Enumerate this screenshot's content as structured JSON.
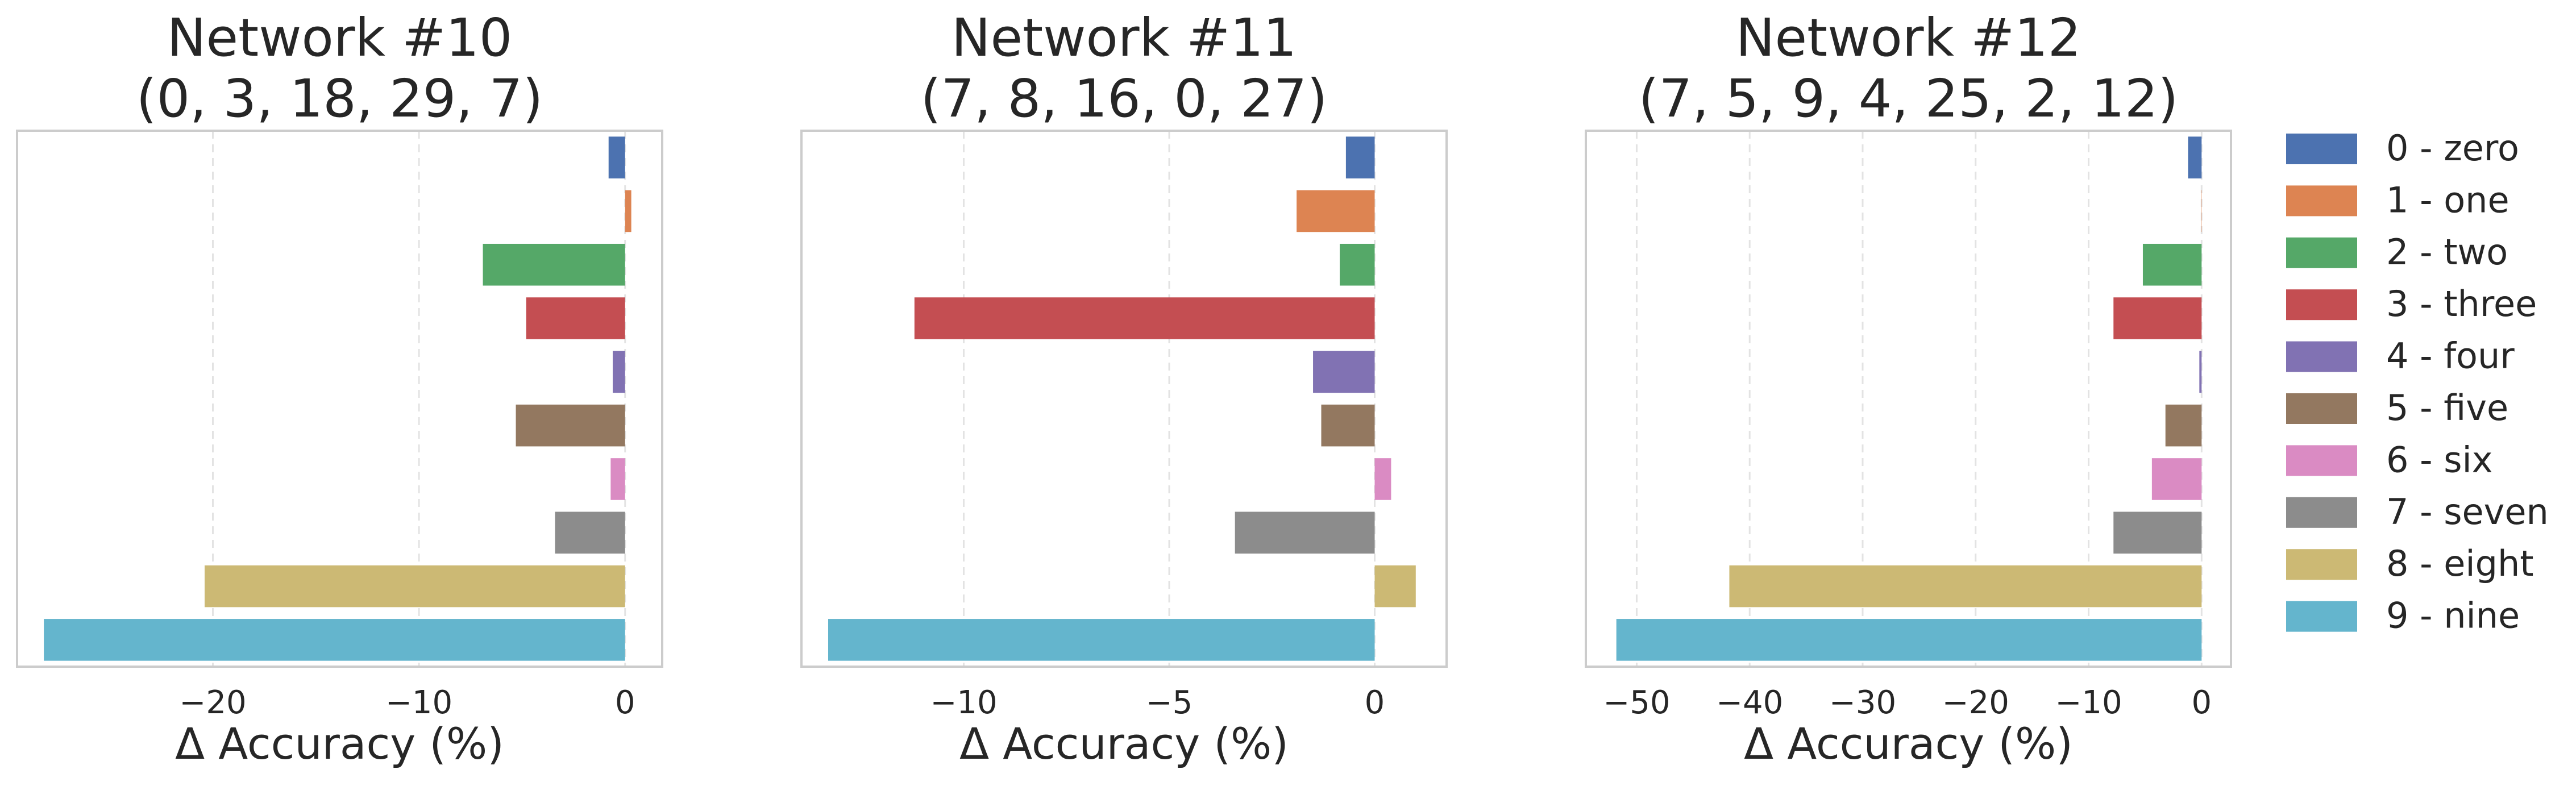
{
  "chart_data": [
    {
      "type": "bar",
      "orientation": "horizontal",
      "title": "Network #10",
      "subtitle": "(0, 3, 18, 29, 7)",
      "xlabel": "Δ Accuracy (%)",
      "ylabel": "",
      "xlim": [
        -29.5,
        1.8
      ],
      "xticks": [
        -20,
        -10,
        0
      ],
      "xtick_labels": [
        "−20",
        "−10",
        "0"
      ],
      "grid": "x-dashed",
      "categories": [
        "0 - zero",
        "1 - one",
        "2 - two",
        "3 - three",
        "4 - four",
        "5 - five",
        "6 - six",
        "7 - seven",
        "8 - eight",
        "9 - nine"
      ],
      "values": [
        -0.8,
        0.3,
        -6.9,
        -4.8,
        -0.6,
        -5.3,
        -0.7,
        -3.4,
        -20.4,
        -28.2
      ]
    },
    {
      "type": "bar",
      "orientation": "horizontal",
      "title": "Network #11",
      "subtitle": "(7, 8, 16, 0, 27)",
      "xlabel": "Δ Accuracy (%)",
      "ylabel": "",
      "xlim": [
        -13.95,
        1.75
      ],
      "xticks": [
        -10,
        -5,
        0
      ],
      "xtick_labels": [
        "−10",
        "−5",
        "0"
      ],
      "grid": "x-dashed",
      "categories": [
        "0 - zero",
        "1 - one",
        "2 - two",
        "3 - three",
        "4 - four",
        "5 - five",
        "6 - six",
        "7 - seven",
        "8 - eight",
        "9 - nine"
      ],
      "values": [
        -0.7,
        -1.9,
        -0.85,
        -11.2,
        -1.5,
        -1.3,
        0.4,
        -3.4,
        1.0,
        -13.3
      ]
    },
    {
      "type": "bar",
      "orientation": "horizontal",
      "title": "Network #12",
      "subtitle": "(7, 5, 9, 4, 25, 2, 12)",
      "xlabel": "Δ Accuracy (%)",
      "ylabel": "",
      "xlim": [
        -54.5,
        2.6
      ],
      "xticks": [
        -50,
        -40,
        -30,
        -20,
        -10,
        0
      ],
      "xtick_labels": [
        "−50",
        "−40",
        "−30",
        "−20",
        "−10",
        "0"
      ],
      "grid": "x-dashed",
      "categories": [
        "0 - zero",
        "1 - one",
        "2 - two",
        "3 - three",
        "4 - four",
        "5 - five",
        "6 - six",
        "7 - seven",
        "8 - eight",
        "9 - nine"
      ],
      "values": [
        -1.2,
        0.0,
        -5.2,
        -7.8,
        -0.2,
        -3.2,
        -4.4,
        -7.8,
        -41.8,
        -51.8
      ]
    }
  ],
  "legend": {
    "placement": "right",
    "entries": [
      {
        "label": "0 - zero",
        "color": "#4c72b0"
      },
      {
        "label": "1 - one",
        "color": "#dd8452"
      },
      {
        "label": "2 - two",
        "color": "#55a868"
      },
      {
        "label": "3 - three",
        "color": "#c44e52"
      },
      {
        "label": "4 - four",
        "color": "#8172b3"
      },
      {
        "label": "5 - five",
        "color": "#937860"
      },
      {
        "label": "6 - six",
        "color": "#da8bc3"
      },
      {
        "label": "7 - seven",
        "color": "#8c8c8c"
      },
      {
        "label": "8 - eight",
        "color": "#ccb974"
      },
      {
        "label": "9 - nine",
        "color": "#64b5cd"
      }
    ]
  }
}
